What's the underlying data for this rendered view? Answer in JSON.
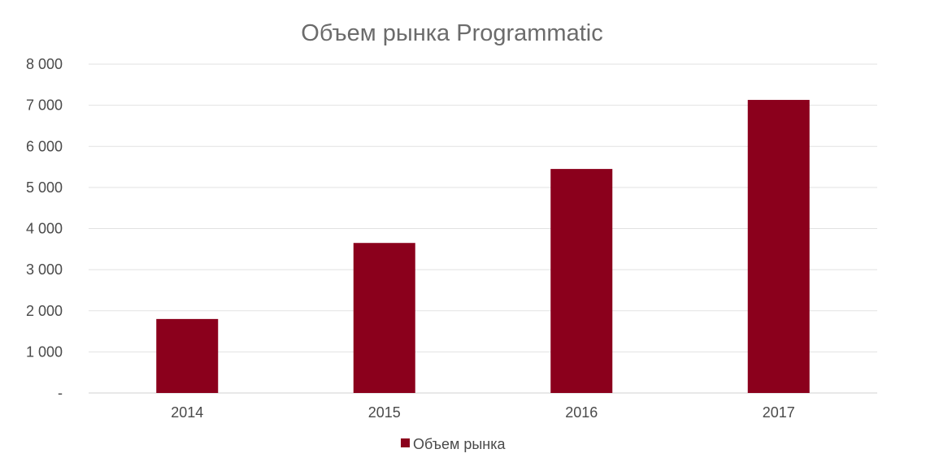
{
  "chart_data": {
    "type": "bar",
    "title": "Объем рынка Programmatic",
    "categories": [
      "2014",
      "2015",
      "2016",
      "2017"
    ],
    "series": [
      {
        "name": "Объем рынка",
        "values": [
          1800,
          3650,
          5450,
          7130
        ],
        "color": "#8b001c"
      }
    ],
    "ylim": [
      0,
      8000
    ],
    "yticks": [
      0,
      1000,
      2000,
      3000,
      4000,
      5000,
      6000,
      7000,
      8000
    ],
    "ytick_labels": [
      "-",
      "1 000",
      "2 000",
      "3 000",
      "4 000",
      "5 000",
      "6 000",
      "7 000",
      "8 000"
    ],
    "grid": true,
    "legend_position": "bottom",
    "xlabel": "",
    "ylabel": ""
  }
}
